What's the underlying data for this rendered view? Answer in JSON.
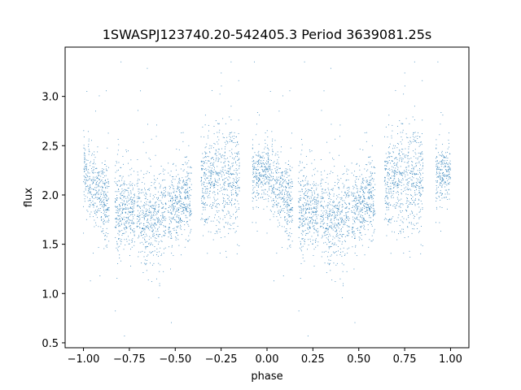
{
  "chart_data": {
    "type": "scatter",
    "title": "1SWASPJ123740.20-542405.3 Period 3639081.25s",
    "xlabel": "phase",
    "ylabel": "flux",
    "xlim": [
      -1.1,
      1.1
    ],
    "ylim": [
      0.45,
      3.5
    ],
    "xticks": [
      -1.0,
      -0.75,
      -0.5,
      -0.25,
      0.0,
      0.25,
      0.5,
      0.75,
      1.0
    ],
    "xtick_labels": [
      "−1.00",
      "−0.75",
      "−0.50",
      "−0.25",
      "0.00",
      "0.25",
      "0.50",
      "0.75",
      "1.00"
    ],
    "yticks": [
      0.5,
      1.0,
      1.5,
      2.0,
      2.5,
      3.0
    ],
    "ytick_labels": [
      "0.5",
      "1.0",
      "1.5",
      "2.0",
      "2.5",
      "3.0"
    ],
    "grid": false,
    "legend": "none",
    "marker_color": "#1f77b4",
    "profile": {
      "phase": [
        0.0,
        0.05,
        0.1,
        0.15,
        0.2,
        0.25,
        0.3,
        0.35,
        0.4,
        0.45,
        0.5,
        0.55,
        0.6,
        0.65,
        0.7,
        0.75,
        0.8,
        0.85,
        0.9,
        0.95,
        1.0
      ],
      "mean_flux": [
        2.25,
        2.1,
        2.0,
        1.9,
        1.85,
        1.85,
        1.8,
        1.75,
        1.75,
        1.82,
        1.92,
        1.95,
        2.0,
        2.05,
        2.15,
        2.15,
        2.2,
        2.15,
        2.2,
        2.22,
        2.25
      ],
      "spread": [
        0.2,
        0.25,
        0.3,
        0.3,
        0.3,
        0.28,
        0.28,
        0.3,
        0.3,
        0.28,
        0.25,
        0.25,
        0.28,
        0.3,
        0.35,
        0.38,
        0.35,
        0.35,
        0.25,
        0.2,
        0.2
      ]
    },
    "observed_segments": [
      [
        0.0,
        0.14
      ],
      [
        0.17,
        0.28
      ],
      [
        0.29,
        0.45
      ],
      [
        0.46,
        0.59
      ],
      [
        0.64,
        0.85
      ],
      [
        0.92,
        1.0
      ]
    ],
    "n_points_per_half": 2600
  }
}
